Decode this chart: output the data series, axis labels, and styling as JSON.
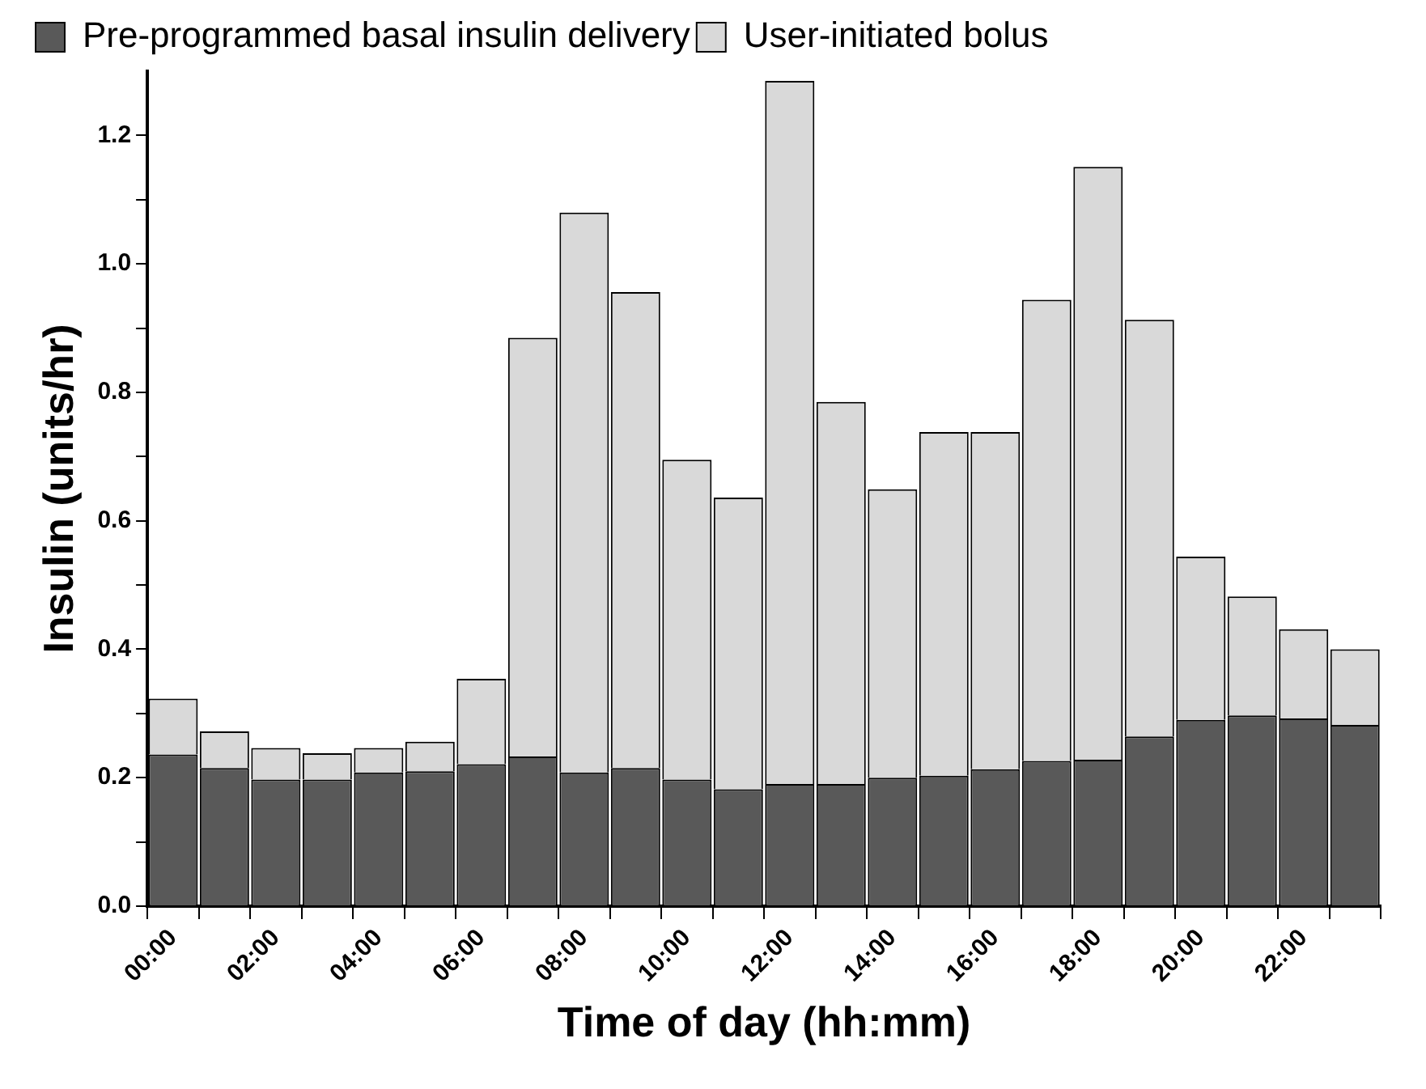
{
  "chart_data": {
    "type": "bar",
    "stacked": true,
    "xlabel": "Time of day (hh:mm)",
    "ylabel": "Insulin (units/hr)",
    "categories": [
      "00:00",
      null,
      "02:00",
      null,
      "04:00",
      null,
      "06:00",
      null,
      "08:00",
      null,
      "10:00",
      null,
      "12:00",
      null,
      "14:00",
      null,
      "16:00",
      null,
      "18:00",
      null,
      "20:00",
      null,
      "22:00",
      null
    ],
    "series": [
      {
        "name": "Pre-programmed basal insulin delivery",
        "color": "#595959",
        "values": [
          0.236,
          0.215,
          0.197,
          0.197,
          0.208,
          0.21,
          0.221,
          0.233,
          0.208,
          0.215,
          0.197,
          0.182,
          0.19,
          0.19,
          0.2,
          0.203,
          0.213,
          0.226,
          0.228,
          0.264,
          0.29,
          0.297,
          0.292,
          0.282
        ]
      },
      {
        "name": "User-initiated bolus",
        "color": "#d9d9d9",
        "values": [
          0.087,
          0.057,
          0.049,
          0.041,
          0.038,
          0.046,
          0.133,
          0.652,
          0.872,
          0.741,
          0.498,
          0.454,
          1.095,
          0.595,
          0.449,
          0.535,
          0.525,
          0.718,
          0.923,
          0.649,
          0.254,
          0.185,
          0.139,
          0.118
        ]
      }
    ],
    "ylim": [
      0,
      1.3
    ],
    "yticks": [
      {
        "value": 0,
        "label": "0.0"
      },
      {
        "value": 0.1,
        "label": null
      },
      {
        "value": 0.2,
        "label": "0.2"
      },
      {
        "value": 0.3,
        "label": null
      },
      {
        "value": 0.4,
        "label": "0.4"
      },
      {
        "value": 0.5,
        "label": null
      },
      {
        "value": 0.6,
        "label": "0.6"
      },
      {
        "value": 0.7,
        "label": null
      },
      {
        "value": 0.8,
        "label": "0.8"
      },
      {
        "value": 0.9,
        "label": null
      },
      {
        "value": 1.0,
        "label": "1.0"
      },
      {
        "value": 1.1,
        "label": null
      },
      {
        "value": 1.2,
        "label": "1.2"
      }
    ],
    "grid": false,
    "legend": "top left"
  }
}
